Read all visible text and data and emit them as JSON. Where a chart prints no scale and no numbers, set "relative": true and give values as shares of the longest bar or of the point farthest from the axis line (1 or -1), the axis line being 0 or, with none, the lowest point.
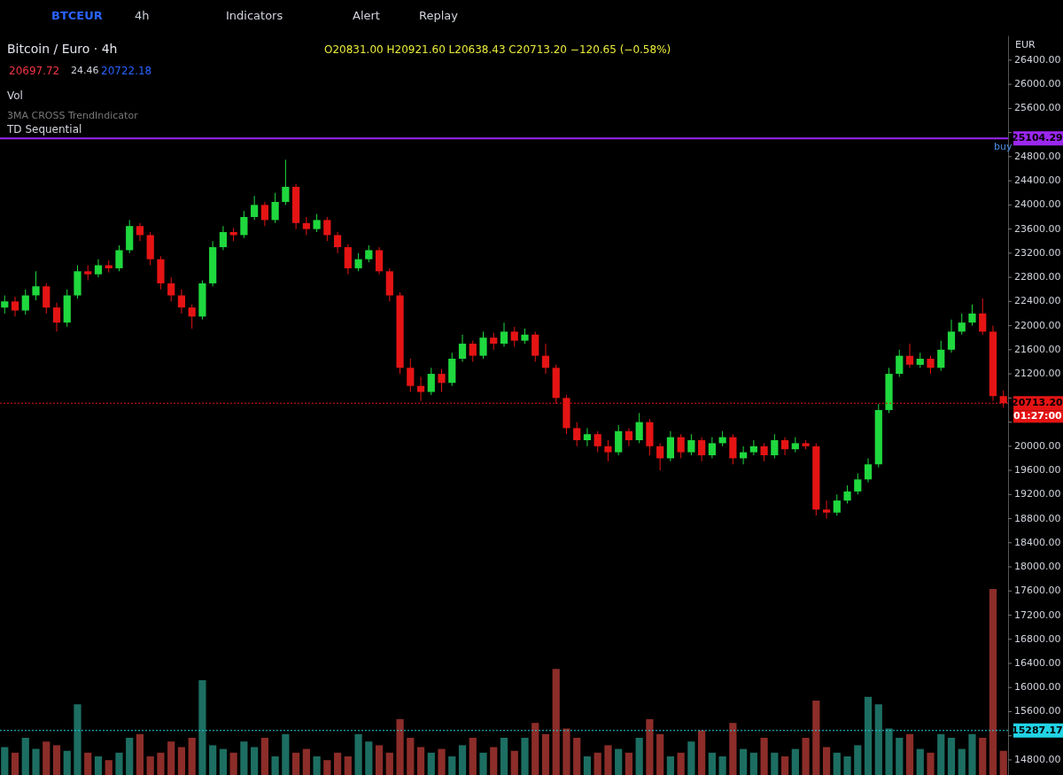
{
  "chart_data": [
    {
      "type": "candlestick",
      "title": "Bitcoin / Euro · 4h",
      "subtitle": "O20831.00 H20921.60 L20638.43 C20713.20 −120.65 (−0.58%)",
      "ylabel": "EUR",
      "categories": [
        null,
        null,
        null,
        null,
        null,
        null,
        null,
        null,
        null,
        null,
        null,
        null,
        null,
        null,
        null,
        null,
        null,
        null,
        null,
        null,
        null,
        null,
        null,
        null,
        null,
        null,
        null,
        null,
        null,
        null,
        null,
        null,
        null,
        null,
        null,
        null,
        null,
        null,
        null,
        null,
        null,
        null,
        null,
        null,
        null,
        null,
        null,
        null,
        null,
        null,
        null,
        null,
        null,
        null,
        null,
        null,
        null,
        null,
        null,
        null,
        null,
        null,
        null,
        null,
        null,
        null,
        null,
        null,
        null,
        null,
        null,
        null,
        null,
        null,
        null,
        null,
        null,
        null,
        null,
        null,
        null,
        null,
        null,
        null,
        null,
        null,
        null,
        null,
        null,
        null,
        null,
        null,
        null,
        null,
        null,
        null,
        null
      ],
      "ohlc": [
        [
          22300,
          22500,
          22200,
          22400
        ],
        [
          22400,
          22480,
          22150,
          22250
        ],
        [
          22250,
          22600,
          22180,
          22500
        ],
        [
          22500,
          22900,
          22420,
          22650
        ],
        [
          22650,
          22700,
          22200,
          22300
        ],
        [
          22300,
          22380,
          21900,
          22050
        ],
        [
          22050,
          22600,
          21980,
          22500
        ],
        [
          22500,
          23000,
          22450,
          22900
        ],
        [
          22900,
          23000,
          22750,
          22850
        ],
        [
          22850,
          23100,
          22800,
          23000
        ],
        [
          23000,
          23080,
          22880,
          22950
        ],
        [
          22950,
          23330,
          22900,
          23250
        ],
        [
          23250,
          23750,
          23200,
          23650
        ],
        [
          23650,
          23700,
          23400,
          23500
        ],
        [
          23500,
          23550,
          23000,
          23100
        ],
        [
          23100,
          23150,
          22600,
          22700
        ],
        [
          22700,
          22800,
          22400,
          22500
        ],
        [
          22500,
          22600,
          22200,
          22300
        ],
        [
          22300,
          22350,
          21950,
          22150
        ],
        [
          22150,
          22750,
          22100,
          22700
        ],
        [
          22700,
          23400,
          22650,
          23300
        ],
        [
          23300,
          23650,
          23250,
          23550
        ],
        [
          23550,
          23620,
          23400,
          23500
        ],
        [
          23500,
          23900,
          23450,
          23800
        ],
        [
          23800,
          24150,
          23750,
          24000
        ],
        [
          24000,
          24050,
          23650,
          23750
        ],
        [
          23750,
          24200,
          23700,
          24050
        ],
        [
          24050,
          24750,
          24000,
          24300
        ],
        [
          24300,
          24350,
          23600,
          23700
        ],
        [
          23700,
          23800,
          23500,
          23600
        ],
        [
          23600,
          23850,
          23550,
          23750
        ],
        [
          23750,
          23800,
          23400,
          23500
        ],
        [
          23500,
          23550,
          23200,
          23300
        ],
        [
          23300,
          23350,
          22850,
          22950
        ],
        [
          22950,
          23200,
          22900,
          23100
        ],
        [
          23100,
          23330,
          23050,
          23250
        ],
        [
          23250,
          23300,
          22850,
          22900
        ],
        [
          22900,
          22950,
          22400,
          22500
        ],
        [
          22500,
          22550,
          21200,
          21300
        ],
        [
          21300,
          21450,
          20900,
          21000
        ],
        [
          21000,
          21150,
          20750,
          20900
        ],
        [
          20900,
          21300,
          20850,
          21200
        ],
        [
          21200,
          21280,
          20900,
          21050
        ],
        [
          21050,
          21550,
          21000,
          21450
        ],
        [
          21450,
          21850,
          21400,
          21700
        ],
        [
          21700,
          21750,
          21400,
          21500
        ],
        [
          21500,
          21900,
          21450,
          21800
        ],
        [
          21800,
          21880,
          21600,
          21700
        ],
        [
          21700,
          22050,
          21650,
          21900
        ],
        [
          21900,
          21980,
          21650,
          21750
        ],
        [
          21750,
          21950,
          21700,
          21850
        ],
        [
          21850,
          21900,
          21400,
          21500
        ],
        [
          21500,
          21700,
          21200,
          21300
        ],
        [
          21300,
          21350,
          20700,
          20800
        ],
        [
          20800,
          20850,
          20200,
          20300
        ],
        [
          20300,
          20400,
          20000,
          20100
        ],
        [
          20100,
          20300,
          20000,
          20200
        ],
        [
          20200,
          20250,
          19900,
          20000
        ],
        [
          20000,
          20100,
          19750,
          19900
        ],
        [
          19900,
          20350,
          19850,
          20250
        ],
        [
          20250,
          20300,
          20000,
          20100
        ],
        [
          20100,
          20550,
          20050,
          20400
        ],
        [
          20400,
          20450,
          19850,
          20000
        ],
        [
          20000,
          20050,
          19600,
          19800
        ],
        [
          19800,
          20250,
          19750,
          20150
        ],
        [
          20150,
          20200,
          19800,
          19900
        ],
        [
          19900,
          20200,
          19850,
          20100
        ],
        [
          20100,
          20150,
          19750,
          19850
        ],
        [
          19850,
          20150,
          19800,
          20050
        ],
        [
          20050,
          20250,
          20000,
          20150
        ],
        [
          20150,
          20200,
          19700,
          19800
        ],
        [
          19800,
          20000,
          19700,
          19900
        ],
        [
          19900,
          20100,
          19850,
          20000
        ],
        [
          20000,
          20050,
          19750,
          19850
        ],
        [
          19850,
          20200,
          19800,
          20100
        ],
        [
          20100,
          20150,
          19850,
          19950
        ],
        [
          19950,
          20150,
          19900,
          20050
        ],
        [
          20050,
          20100,
          19950,
          20000
        ],
        [
          20000,
          20050,
          18850,
          18950
        ],
        [
          18950,
          19100,
          18800,
          18900
        ],
        [
          18900,
          19200,
          18850,
          19100
        ],
        [
          19100,
          19350,
          19050,
          19250
        ],
        [
          19250,
          19550,
          19200,
          19450
        ],
        [
          19450,
          19800,
          19400,
          19700
        ],
        [
          19700,
          20700,
          19650,
          20600
        ],
        [
          20600,
          21300,
          20550,
          21200
        ],
        [
          21200,
          21600,
          21150,
          21500
        ],
        [
          21500,
          21700,
          21300,
          21350
        ],
        [
          21350,
          21550,
          21300,
          21450
        ],
        [
          21450,
          21500,
          21200,
          21300
        ],
        [
          21300,
          21750,
          21250,
          21600
        ],
        [
          21600,
          22100,
          21550,
          21900
        ],
        [
          21900,
          22200,
          21850,
          22050
        ],
        [
          22050,
          22350,
          22000,
          22200
        ],
        [
          22200,
          22450,
          21850,
          21900
        ],
        [
          21900,
          22000,
          20750,
          20831
        ],
        [
          20831,
          20921.6,
          20638.43,
          20713.2
        ]
      ],
      "colors": [
        "#1fd83e",
        "#e51414",
        "#1fd83e",
        "#1fd83e",
        "#e51414",
        "#e51414",
        "#1fd83e",
        "#1fd83e",
        "#e51414",
        "#1fd83e",
        "#e51414",
        "#1fd83e",
        "#1fd83e",
        "#e51414",
        "#e51414",
        "#e51414",
        "#e51414",
        "#e51414",
        "#e51414",
        "#1fd83e",
        "#1fd83e",
        "#1fd83e",
        "#e51414",
        "#1fd83e",
        "#1fd83e",
        "#e51414",
        "#1fd83e",
        "#1fd83e",
        "#e51414",
        "#e51414",
        "#1fd83e",
        "#e51414",
        "#e51414",
        "#e51414",
        "#1fd83e",
        "#1fd83e",
        "#e51414",
        "#e51414",
        "#e51414",
        "#e51414",
        "#e51414",
        "#1fd83e",
        "#e51414",
        "#1fd83e",
        "#1fd83e",
        "#e51414",
        "#1fd83e",
        "#e51414",
        "#1fd83e",
        "#e51414",
        "#1fd83e",
        "#e51414",
        "#e51414",
        "#e51414",
        "#e51414",
        "#e51414",
        "#1fd83e",
        "#e51414",
        "#e51414",
        "#1fd83e",
        "#e51414",
        "#1fd83e",
        "#e51414",
        "#e51414",
        "#1fd83e",
        "#e51414",
        "#1fd83e",
        "#e51414",
        "#1fd83e",
        "#1fd83e",
        "#e51414",
        "#1fd83e",
        "#1fd83e",
        "#e51414",
        "#1fd83e",
        "#e51414",
        "#1fd83e",
        "#e51414",
        "#e51414",
        "#e51414",
        "#1fd83e",
        "#1fd83e",
        "#1fd83e",
        "#1fd83e",
        "#1fd83e",
        "#1fd83e",
        "#1fd83e",
        "#e51414",
        "#1fd83e",
        "#e51414",
        "#1fd83e",
        "#1fd83e",
        "#1fd83e",
        "#1fd83e",
        "#e51414",
        "#e51414",
        "#e51414"
      ],
      "ylim": [
        14550,
        26810
      ],
      "yticks": [
        {
          "value": 14800,
          "label": "14800.00"
        },
        {
          "value": 15200,
          "label": null
        },
        {
          "value": 15600,
          "label": "15600.00"
        },
        {
          "value": 16000,
          "label": "16000.00"
        },
        {
          "value": 16400,
          "label": "16400.00"
        },
        {
          "value": 16800,
          "label": "16800.00"
        },
        {
          "value": 17200,
          "label": "17200.00"
        },
        {
          "value": 17600,
          "label": "17600.00"
        },
        {
          "value": 18000,
          "label": "18000.00"
        },
        {
          "value": 18400,
          "label": "18400.00"
        },
        {
          "value": 18800,
          "label": "18800.00"
        },
        {
          "value": 19200,
          "label": "19200.00"
        },
        {
          "value": 19600,
          "label": "19600.00"
        },
        {
          "value": 20000,
          "label": "20000.00"
        },
        {
          "value": 20400,
          "label": null
        },
        {
          "value": 20800,
          "label": null
        },
        {
          "value": 21200,
          "label": "21200.00"
        },
        {
          "value": 21600,
          "label": "21600.00"
        },
        {
          "value": 22000,
          "label": "22000.00"
        },
        {
          "value": 22400,
          "label": "22400.00"
        },
        {
          "value": 22800,
          "label": "22800.00"
        },
        {
          "value": 23200,
          "label": "23200.00"
        },
        {
          "value": 23600,
          "label": "23600.00"
        },
        {
          "value": 24000,
          "label": "24000.00"
        },
        {
          "value": 24400,
          "label": "24400.00"
        },
        {
          "value": 24800,
          "label": "24800.00"
        },
        {
          "value": 25200,
          "label": null
        },
        {
          "value": 25600,
          "label": "25600.00"
        },
        {
          "value": 26000,
          "label": "26000.00"
        },
        {
          "value": 26400,
          "label": "26400.00"
        }
      ],
      "tick_labels": "y",
      "grid": false,
      "ref_lines": [
        {
          "axis": "y",
          "value": 25104.29,
          "label": "25104.29",
          "color": "#9c27f0",
          "line_style": "solid"
        },
        {
          "axis": "y",
          "value": 20713.2,
          "label": "20713.20",
          "color": "#e51414",
          "line_style": "dotted"
        },
        {
          "axis": "y",
          "value": 15287.17,
          "label": "15287.17",
          "color": "#22d3e6",
          "line_style": "dotted"
        }
      ],
      "annotations": [
        "BTCEUR",
        "4h",
        "Indicators",
        "Alert",
        "Replay",
        "20697.72",
        "24.46",
        "20722.18",
        "Vol",
        "3MA CROSS TrendIndicator",
        "TD Sequential",
        "buy",
        "01:27:00"
      ]
    },
    {
      "type": "bar",
      "relative": true,
      "values": [
        0.15,
        0.12,
        0.2,
        0.14,
        0.18,
        0.16,
        0.13,
        0.38,
        0.12,
        0.1,
        0.08,
        0.12,
        0.2,
        0.22,
        0.1,
        0.12,
        0.18,
        0.15,
        0.2,
        0.51,
        0.16,
        0.14,
        0.12,
        0.18,
        0.15,
        0.2,
        0.1,
        0.22,
        0.12,
        0.14,
        0.1,
        0.08,
        0.12,
        0.1,
        0.22,
        0.18,
        0.16,
        0.12,
        0.3,
        0.2,
        0.15,
        0.12,
        0.14,
        0.1,
        0.16,
        0.2,
        0.12,
        0.15,
        0.2,
        0.13,
        0.2,
        0.28,
        0.22,
        0.57,
        0.25,
        0.2,
        0.1,
        0.12,
        0.16,
        0.14,
        0.12,
        0.2,
        0.3,
        0.22,
        0.1,
        0.12,
        0.18,
        0.24,
        0.12,
        0.1,
        0.28,
        0.14,
        0.12,
        0.2,
        0.12,
        0.1,
        0.14,
        0.2,
        0.4,
        0.15,
        0.12,
        0.1,
        0.16,
        0.42,
        0.38,
        0.25,
        0.2,
        0.22,
        0.14,
        0.12,
        0.22,
        0.2,
        0.14,
        0.22,
        0.2,
        1.0,
        0.13
      ],
      "colors": [
        "#1d6e62",
        "#8c2d29",
        "#1d6e62",
        "#1d6e62",
        "#8c2d29",
        "#8c2d29",
        "#1d6e62",
        "#1d6e62",
        "#8c2d29",
        "#1d6e62",
        "#8c2d29",
        "#1d6e62",
        "#1d6e62",
        "#8c2d29",
        "#8c2d29",
        "#8c2d29",
        "#8c2d29",
        "#8c2d29",
        "#8c2d29",
        "#1d6e62",
        "#1d6e62",
        "#1d6e62",
        "#8c2d29",
        "#1d6e62",
        "#1d6e62",
        "#8c2d29",
        "#1d6e62",
        "#1d6e62",
        "#8c2d29",
        "#8c2d29",
        "#1d6e62",
        "#8c2d29",
        "#8c2d29",
        "#8c2d29",
        "#1d6e62",
        "#1d6e62",
        "#8c2d29",
        "#8c2d29",
        "#8c2d29",
        "#8c2d29",
        "#8c2d29",
        "#1d6e62",
        "#8c2d29",
        "#1d6e62",
        "#1d6e62",
        "#8c2d29",
        "#1d6e62",
        "#8c2d29",
        "#1d6e62",
        "#8c2d29",
        "#1d6e62",
        "#8c2d29",
        "#8c2d29",
        "#8c2d29",
        "#8c2d29",
        "#8c2d29",
        "#1d6e62",
        "#8c2d29",
        "#8c2d29",
        "#1d6e62",
        "#8c2d29",
        "#1d6e62",
        "#8c2d29",
        "#8c2d29",
        "#1d6e62",
        "#8c2d29",
        "#1d6e62",
        "#8c2d29",
        "#1d6e62",
        "#1d6e62",
        "#8c2d29",
        "#1d6e62",
        "#1d6e62",
        "#8c2d29",
        "#1d6e62",
        "#8c2d29",
        "#1d6e62",
        "#8c2d29",
        "#8c2d29",
        "#8c2d29",
        "#1d6e62",
        "#1d6e62",
        "#1d6e62",
        "#1d6e62",
        "#1d6e62",
        "#1d6e62",
        "#1d6e62",
        "#8c2d29",
        "#1d6e62",
        "#8c2d29",
        "#1d6e62",
        "#1d6e62",
        "#1d6e62",
        "#1d6e62",
        "#8c2d29",
        "#8c2d29",
        "#8c2d29"
      ]
    }
  ]
}
